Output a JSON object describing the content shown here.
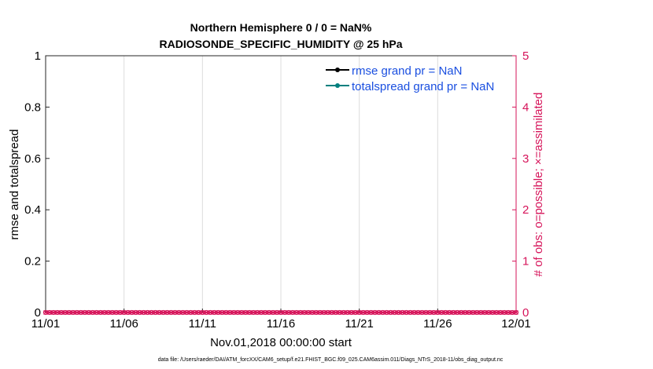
{
  "chart_data": {
    "type": "line",
    "title": [
      "Northern Hemisphere 0 / 0 = NaN%",
      "RADIOSONDE_SPECIFIC_HUMIDITY @ 25 hPa"
    ],
    "xlabel": "Nov.01,2018 00:00:00 start",
    "ylabel_left": "rmse and totalspread",
    "ylabel_right": "# of obs: o=possible; ×=assimilated",
    "x_ticks": [
      "11/01",
      "11/06",
      "11/11",
      "11/16",
      "11/21",
      "11/26",
      "12/01"
    ],
    "x_range_days": [
      0,
      30
    ],
    "y_left_ticks": [
      "0",
      "0.2",
      "0.4",
      "0.6",
      "0.8",
      "1"
    ],
    "ylim_left": [
      0,
      1
    ],
    "y_right_ticks": [
      "0",
      "1",
      "2",
      "3",
      "4",
      "5"
    ],
    "ylim_right": [
      0,
      5
    ],
    "grid": "vertical",
    "legend_placement": "top-right",
    "series": [
      {
        "name": "rmse grand pr = NaN",
        "color": "#000000",
        "values": []
      },
      {
        "name": "totalspread grand pr = NaN",
        "color": "#00807f",
        "values": []
      },
      {
        "name_hidden": true,
        "color": "#d6145a",
        "axis": "right",
        "marker": "o",
        "interval_hours": 6,
        "value": 0
      },
      {
        "name_hidden": true,
        "color": "#d6145a",
        "axis": "right",
        "marker": "x",
        "interval_hours": 6,
        "value": 0
      }
    ],
    "legend_text_color": "#1a4fe0",
    "right_axis_color": "#d6145a"
  },
  "footer": "data file: /Users/raeder/DAI/ATM_forcXX/CAM6_setup/f.e21.FHIST_BGC.f09_025.CAM6assim.011/Diags_NTrS_2018-11/obs_diag_output.nc"
}
